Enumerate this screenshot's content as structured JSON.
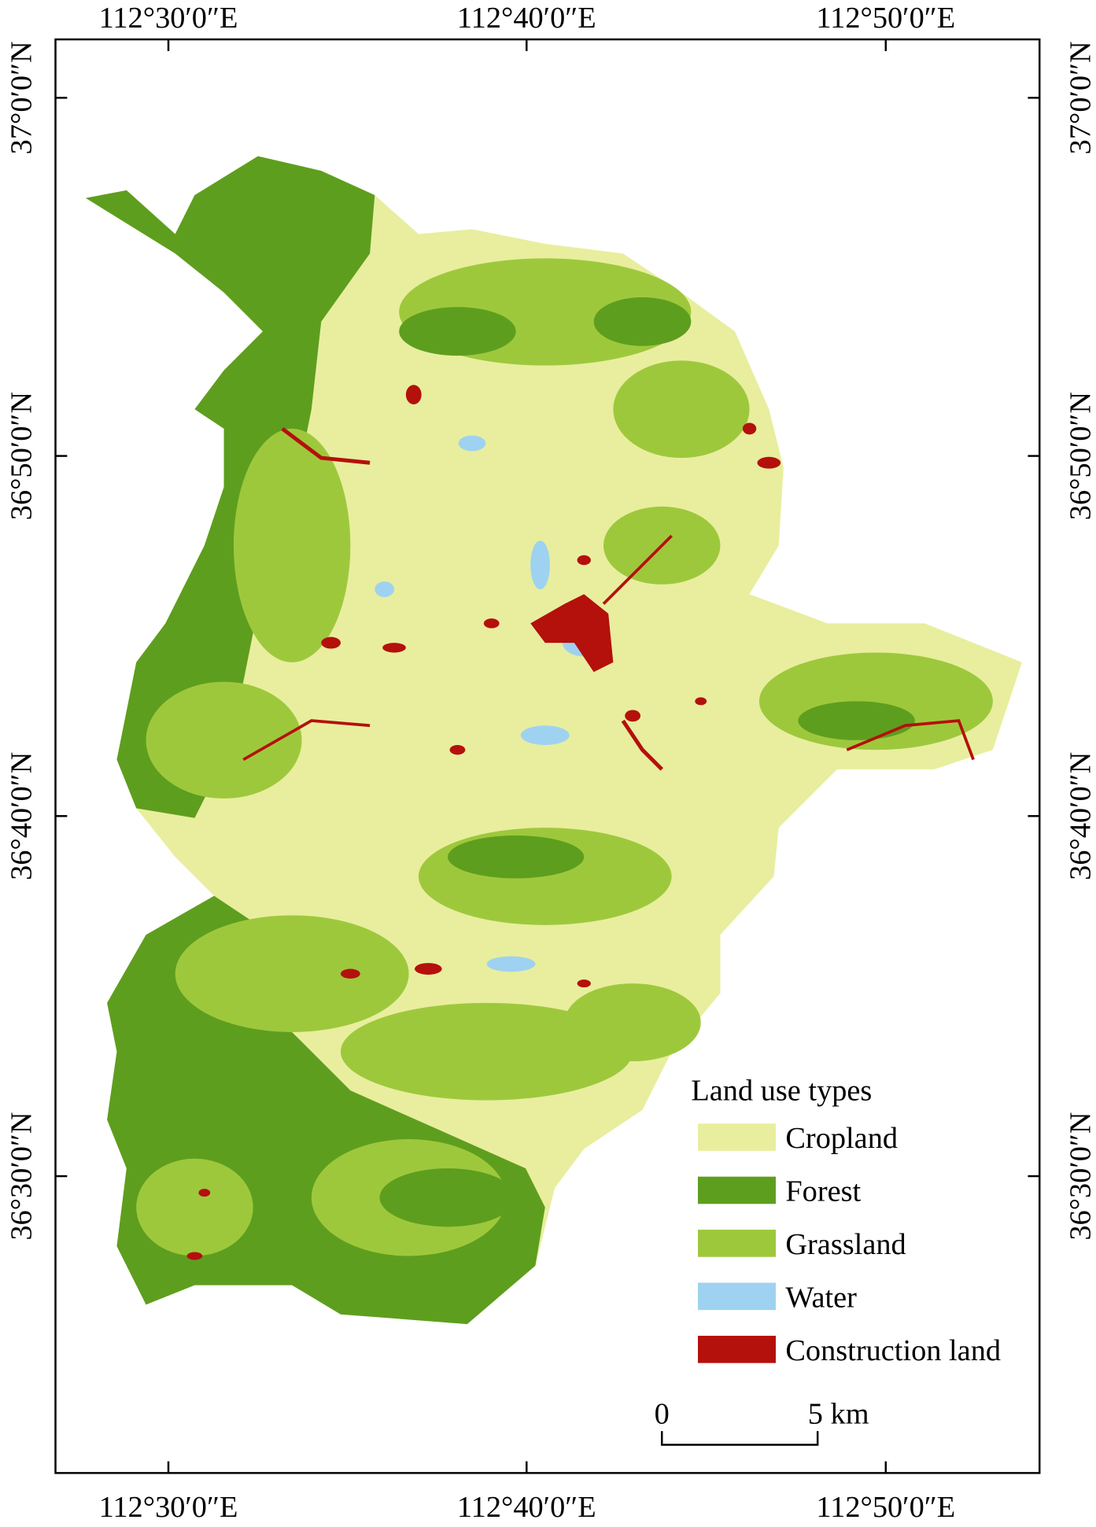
{
  "map": {
    "top_labels": [
      "112°30′0″E",
      "112°40′0″E",
      "112°50′0″E"
    ],
    "bottom_labels": [
      "112°30′0″E",
      "112°40′0″E",
      "112°50′0″E"
    ],
    "left_labels": [
      "37°0′0″N",
      "36°50′0″N",
      "36°40′0″N",
      "36°30′0″N"
    ],
    "right_labels": [
      "37°0′0″N",
      "36°50′0″N",
      "36°40′0″N",
      "36°30′0″N"
    ],
    "legend": {
      "title": "Land use types",
      "items": [
        {
          "label": "Cropland",
          "color": "#e8ee9e"
        },
        {
          "label": "Forest",
          "color": "#5e9e1e"
        },
        {
          "label": "Grassland",
          "color": "#9ec83c"
        },
        {
          "label": "Water",
          "color": "#9ed2f0"
        },
        {
          "label": "Construction land",
          "color": "#b4100c"
        }
      ]
    },
    "scale_bar": {
      "labels": [
        "0",
        "5 km"
      ]
    }
  }
}
